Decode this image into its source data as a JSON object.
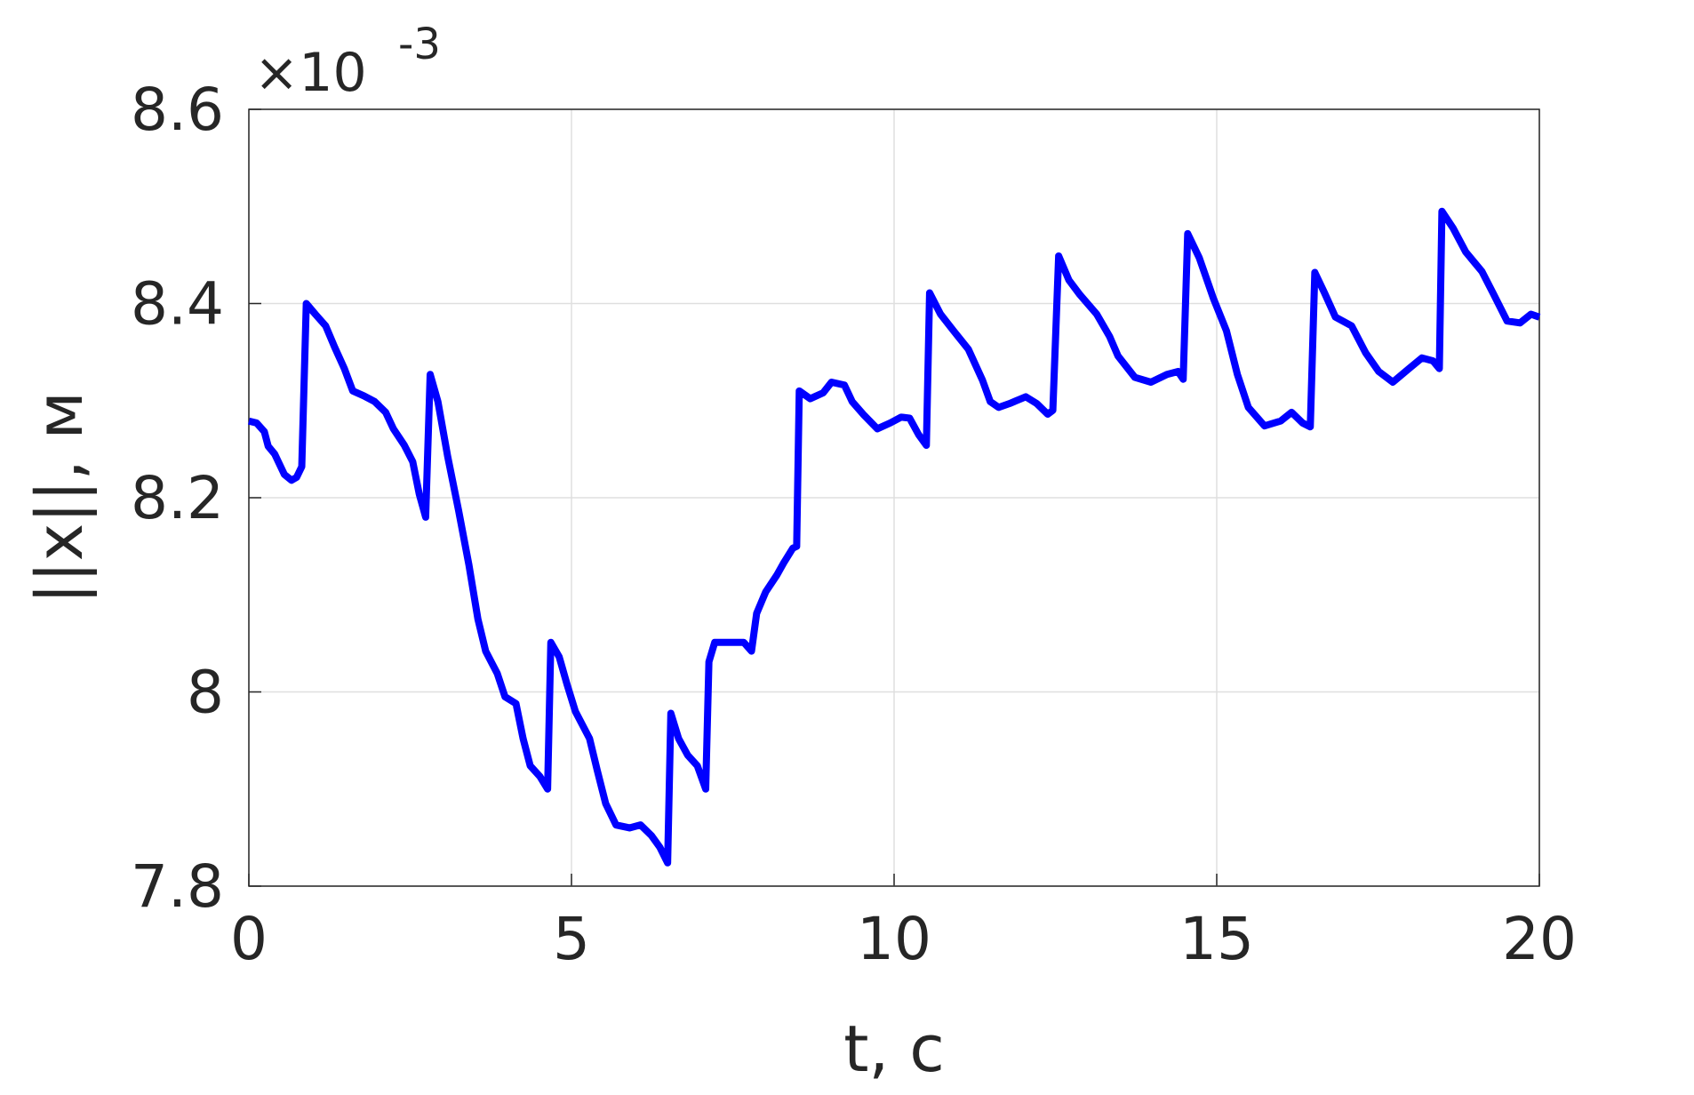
{
  "chart_data": {
    "type": "line",
    "x_label": "t, с",
    "y_label": "||x||, м",
    "y_exponent_base": "×10",
    "y_exponent_power": "-3",
    "xlim": [
      0,
      20
    ],
    "xticks": [
      0,
      5,
      10,
      15,
      20
    ],
    "ylim": [
      7.8,
      8.6
    ],
    "yticks": [
      7.8,
      8,
      8.2,
      8.4,
      8.6
    ],
    "grid": true,
    "series": [
      {
        "color": "#0000ff",
        "x": [
          0,
          0.12,
          0.24,
          0.3,
          0.4,
          0.55,
          0.66,
          0.74,
          0.82,
          0.89,
          1.03,
          1.19,
          1.33,
          1.48,
          1.61,
          1.78,
          1.95,
          2.12,
          2.24,
          2.41,
          2.54,
          2.64,
          2.74,
          2.81,
          2.93,
          3.08,
          3.25,
          3.41,
          3.55,
          3.67,
          3.85,
          3.97,
          4.14,
          4.25,
          4.36,
          4.51,
          4.63,
          4.68,
          4.81,
          4.93,
          5.06,
          5.28,
          5.4,
          5.53,
          5.69,
          5.9,
          6.07,
          6.24,
          6.37,
          6.49,
          6.54,
          6.66,
          6.8,
          6.95,
          7.08,
          7.13,
          7.22,
          7.42,
          7.67,
          7.79,
          7.87,
          8.01,
          8.18,
          8.29,
          8.43,
          8.49,
          8.53,
          8.7,
          8.9,
          9.03,
          9.23,
          9.35,
          9.52,
          9.74,
          9.94,
          10.11,
          10.24,
          10.38,
          10.5,
          10.55,
          10.72,
          10.92,
          11.15,
          11.37,
          11.49,
          11.62,
          11.79,
          12.04,
          12.21,
          12.38,
          12.46,
          12.55,
          12.71,
          12.88,
          13.14,
          13.34,
          13.47,
          13.73,
          13.98,
          14.23,
          14.4,
          14.48,
          14.55,
          14.73,
          14.95,
          15.15,
          15.32,
          15.49,
          15.74,
          15.99,
          16.16,
          16.33,
          16.45,
          16.52,
          16.67,
          16.84,
          17.09,
          17.31,
          17.51,
          17.73,
          17.98,
          18.18,
          18.35,
          18.45,
          18.49,
          18.66,
          18.86,
          19.11,
          19.28,
          19.5,
          19.7,
          19.87,
          20
        ],
        "values": [
          8.279,
          8.277,
          8.268,
          8.253,
          8.245,
          8.224,
          8.218,
          8.221,
          8.232,
          8.4,
          8.389,
          8.377,
          8.355,
          8.333,
          8.31,
          8.305,
          8.299,
          8.288,
          8.271,
          8.254,
          8.237,
          8.204,
          8.18,
          8.327,
          8.299,
          8.243,
          8.187,
          8.131,
          8.075,
          8.042,
          8.019,
          7.995,
          7.988,
          7.952,
          7.924,
          7.913,
          7.9,
          8.051,
          8.036,
          8.008,
          7.98,
          7.952,
          7.919,
          7.885,
          7.863,
          7.86,
          7.863,
          7.852,
          7.84,
          7.824,
          7.978,
          7.952,
          7.935,
          7.924,
          7.9,
          8.031,
          8.051,
          8.051,
          8.051,
          8.042,
          8.081,
          8.103,
          8.12,
          8.133,
          8.148,
          8.15,
          8.31,
          8.302,
          8.308,
          8.319,
          8.316,
          8.299,
          8.286,
          8.271,
          8.277,
          8.283,
          8.282,
          8.265,
          8.254,
          8.411,
          8.389,
          8.372,
          8.353,
          8.321,
          8.299,
          8.293,
          8.297,
          8.304,
          8.297,
          8.286,
          8.29,
          8.449,
          8.424,
          8.409,
          8.389,
          8.366,
          8.346,
          8.324,
          8.319,
          8.327,
          8.33,
          8.322,
          8.472,
          8.447,
          8.405,
          8.372,
          8.327,
          8.293,
          8.274,
          8.279,
          8.288,
          8.277,
          8.273,
          8.432,
          8.411,
          8.386,
          8.377,
          8.349,
          8.33,
          8.319,
          8.333,
          8.344,
          8.341,
          8.333,
          8.495,
          8.478,
          8.453,
          8.433,
          8.411,
          8.382,
          8.38,
          8.389,
          8.386
        ]
      }
    ]
  }
}
